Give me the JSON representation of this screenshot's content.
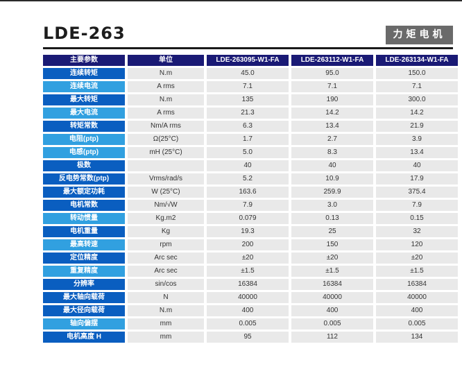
{
  "title": "LDE-263",
  "category_badge": "力矩电机",
  "table": {
    "headers": [
      "主要参数",
      "单位",
      "LDE-263095-W1-FA",
      "LDE-263112-W1-FA",
      "LDE-263134-W1-FA"
    ],
    "rows": [
      {
        "param": "连续转矩",
        "unit": "N.m",
        "values": [
          "45.0",
          "95.0",
          "150.0"
        ]
      },
      {
        "param": "连续电流",
        "unit": "A rms",
        "values": [
          "7.1",
          "7.1",
          "7.1"
        ]
      },
      {
        "param": "最大转矩",
        "unit": "N.m",
        "values": [
          "135",
          "190",
          "300.0"
        ]
      },
      {
        "param": "最大电流",
        "unit": "A rms",
        "values": [
          "21.3",
          "14.2",
          "14.2"
        ]
      },
      {
        "param": "转矩常数",
        "unit": "Nm/A rms",
        "values": [
          "6.3",
          "13.4",
          "21.9"
        ]
      },
      {
        "param": "电阻(ptp)",
        "unit": "Ω(25°C)",
        "values": [
          "1.7",
          "2.7",
          "3.9"
        ]
      },
      {
        "param": "电感(ptp)",
        "unit": "mH (25°C)",
        "values": [
          "5.0",
          "8.3",
          "13.4"
        ]
      },
      {
        "param": "极数",
        "unit": "",
        "values": [
          "40",
          "40",
          "40"
        ]
      },
      {
        "param": "反电势常数(ptp)",
        "unit": "Vrms/rad/s",
        "values": [
          "5.2",
          "10.9",
          "17.9"
        ]
      },
      {
        "param": "最大额定功耗",
        "unit": "W (25°C)",
        "values": [
          "163.6",
          "259.9",
          "375.4"
        ]
      },
      {
        "param": "电机常数",
        "unit": "Nm/√W",
        "values": [
          "7.9",
          "3.0",
          "7.9"
        ]
      },
      {
        "param": "转动惯量",
        "unit": "Kg.m2",
        "values": [
          "0.079",
          "0.13",
          "0.15"
        ]
      },
      {
        "param": "电机重量",
        "unit": "Kg",
        "values": [
          "19.3",
          "25",
          "32"
        ]
      },
      {
        "param": "最高转速",
        "unit": "rpm",
        "values": [
          "200",
          "150",
          "120"
        ]
      },
      {
        "param": "定位精度",
        "unit": "Arc sec",
        "values": [
          "±20",
          "±20",
          "±20"
        ]
      },
      {
        "param": "重复精度",
        "unit": "Arc sec",
        "values": [
          "±1.5",
          "±1.5",
          "±1.5"
        ]
      },
      {
        "param": "分辨率",
        "unit": "sin/cos",
        "values": [
          "16384",
          "16384",
          "16384"
        ]
      },
      {
        "param": "最大轴向载荷",
        "unit": "N",
        "values": [
          "40000",
          "40000",
          "40000"
        ]
      },
      {
        "param": "最大径向载荷",
        "unit": "N.m",
        "values": [
          "400",
          "400",
          "400"
        ]
      },
      {
        "param": "轴向偏摆",
        "unit": "mm",
        "values": [
          "0.005",
          "0.005",
          "0.005"
        ]
      },
      {
        "param": "电机高度 H",
        "unit": "mm",
        "values": [
          "95",
          "112",
          "134"
        ]
      }
    ]
  }
}
